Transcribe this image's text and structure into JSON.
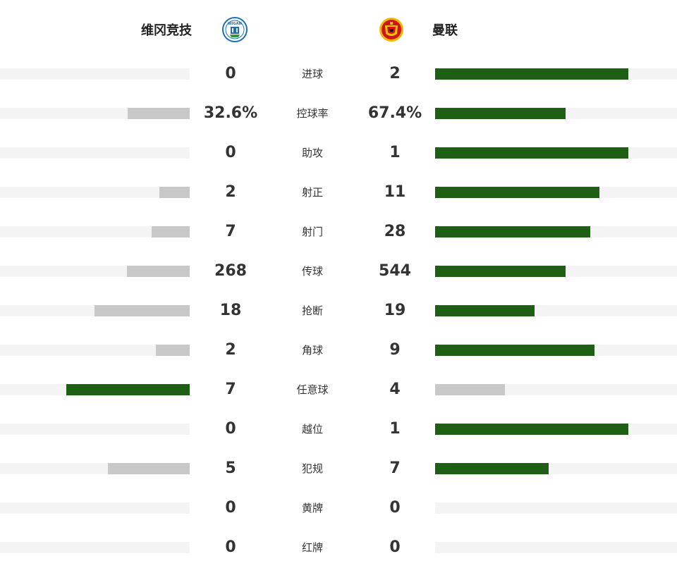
{
  "colors": {
    "leader": "#1e5e15",
    "trailer": "#c8c8c8",
    "track": "#f4f4f4"
  },
  "teams": {
    "home": {
      "name": "维冈竞技",
      "crest_icon": "wigan-crest-icon",
      "crest_text": "WIGAN"
    },
    "away": {
      "name": "曼联",
      "crest_icon": "man-utd-crest-icon"
    }
  },
  "stats": [
    {
      "label": "进球",
      "home": "0",
      "away": "2",
      "home_fraction": 0.0,
      "away_fraction": 0.8
    },
    {
      "label": "控球率",
      "home": "32.6%",
      "away": "67.4%",
      "home_fraction": 0.326,
      "away_fraction": 0.54
    },
    {
      "label": "助攻",
      "home": "0",
      "away": "1",
      "home_fraction": 0.0,
      "away_fraction": 0.8
    },
    {
      "label": "射正",
      "home": "2",
      "away": "11",
      "home_fraction": 0.16,
      "away_fraction": 0.68
    },
    {
      "label": "射门",
      "home": "7",
      "away": "28",
      "home_fraction": 0.2,
      "away_fraction": 0.64
    },
    {
      "label": "传球",
      "home": "268",
      "away": "544",
      "home_fraction": 0.33,
      "away_fraction": 0.54
    },
    {
      "label": "抢断",
      "home": "18",
      "away": "19",
      "home_fraction": 0.5,
      "away_fraction": 0.41
    },
    {
      "label": "角球",
      "home": "2",
      "away": "9",
      "home_fraction": 0.18,
      "away_fraction": 0.66
    },
    {
      "label": "任意球",
      "home": "7",
      "away": "4",
      "home_fraction": 0.65,
      "away_fraction": 0.29
    },
    {
      "label": "越位",
      "home": "0",
      "away": "1",
      "home_fraction": 0.0,
      "away_fraction": 0.8
    },
    {
      "label": "犯规",
      "home": "5",
      "away": "7",
      "home_fraction": 0.43,
      "away_fraction": 0.47
    },
    {
      "label": "黄牌",
      "home": "0",
      "away": "0",
      "home_fraction": 0.0,
      "away_fraction": 0.0
    },
    {
      "label": "红牌",
      "home": "0",
      "away": "0",
      "home_fraction": 0.0,
      "away_fraction": 0.0
    }
  ]
}
